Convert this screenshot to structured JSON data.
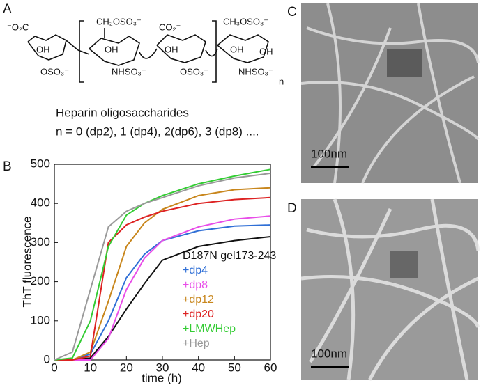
{
  "panel_labels": [
    "A",
    "B",
    "C",
    "D"
  ],
  "structure": {
    "groups": [
      "⁻O₂C",
      "OH",
      "OSO₃⁻",
      "CH₂OSO₃⁻",
      "OH",
      "NHSO₃⁻",
      "CO₂⁻",
      "OH",
      "OSO₃⁻",
      "CH₃OSO₃⁻",
      "OH",
      "OH",
      "NHSO₃⁻",
      "n"
    ],
    "caption": [
      "Heparin oligosaccharides",
      "n = 0 (dp2), 1 (dp4), 2(dp6), 3 (dp8) ...."
    ]
  },
  "chart_data": {
    "type": "line",
    "x_label": "time (h)",
    "y_label": "ThT fluorescence",
    "x": [
      0,
      5,
      10,
      15,
      20,
      25,
      30,
      40,
      50,
      60
    ],
    "xlim": [
      0,
      60
    ],
    "xticks": [
      0,
      10,
      20,
      30,
      40,
      50,
      60
    ],
    "ylim": [
      0,
      500
    ],
    "yticks": [
      0,
      100,
      200,
      300,
      400,
      500
    ],
    "series": [
      {
        "name": "D187N gel173-243",
        "color": "#111111",
        "values": [
          0,
          0,
          5,
          60,
          130,
          195,
          255,
          290,
          305,
          315
        ]
      },
      {
        "name": "+dp4",
        "color": "#2f6fd6",
        "values": [
          0,
          0,
          15,
          100,
          210,
          270,
          305,
          330,
          342,
          345
        ]
      },
      {
        "name": "+dp8",
        "color": "#e84ce8",
        "values": [
          0,
          0,
          0,
          55,
          180,
          260,
          305,
          340,
          360,
          368
        ]
      },
      {
        "name": "+dp12",
        "color": "#c8861c",
        "values": [
          0,
          0,
          20,
          150,
          290,
          350,
          385,
          420,
          435,
          440
        ]
      },
      {
        "name": "+dp20",
        "color": "#dd2222",
        "values": [
          0,
          0,
          10,
          300,
          345,
          365,
          380,
          400,
          410,
          415
        ]
      },
      {
        "name": "+LMWHep",
        "color": "#33cc33",
        "values": [
          0,
          5,
          100,
          290,
          370,
          400,
          420,
          450,
          470,
          487
        ]
      },
      {
        "name": "+Hep",
        "color": "#999999",
        "values": [
          0,
          20,
          180,
          340,
          380,
          400,
          415,
          445,
          465,
          477
        ]
      }
    ]
  },
  "micrographs": {
    "scale_bars": [
      "100nm",
      "100nm"
    ]
  }
}
